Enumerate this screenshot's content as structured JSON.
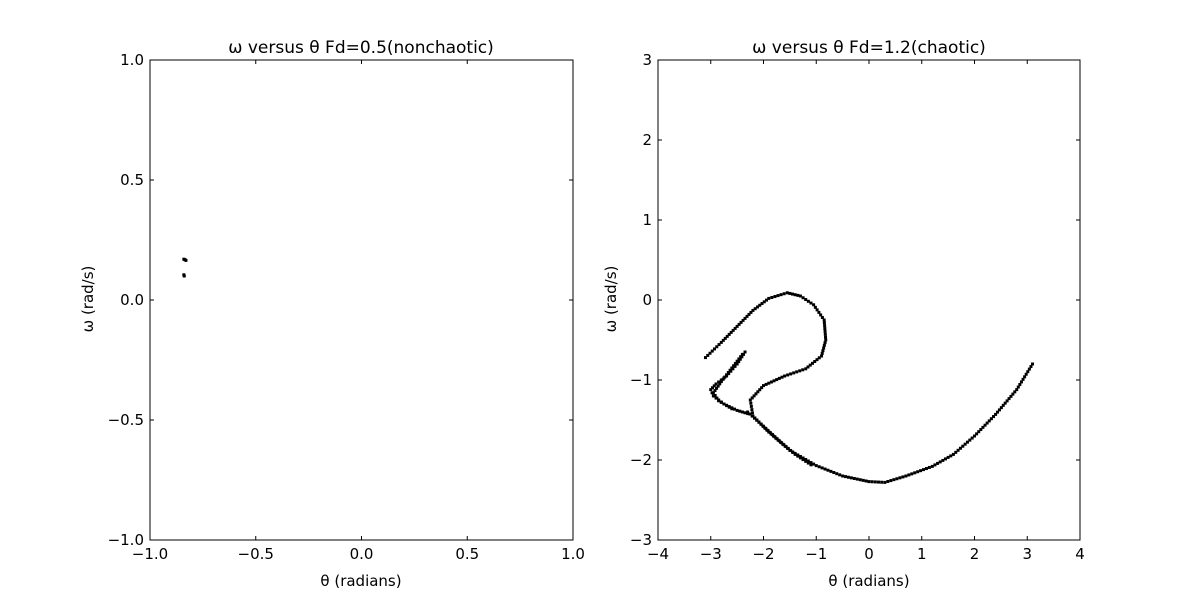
{
  "chart_data": [
    {
      "type": "scatter",
      "title": "ω versus θ  Fd=0.5(nonchaotic)",
      "xlabel": "θ (radians)",
      "ylabel": "ω (rad/s)",
      "xlim": [
        -1.0,
        1.0
      ],
      "ylim": [
        -1.0,
        1.0
      ],
      "xticks": [
        -1.0,
        -0.5,
        0.0,
        0.5,
        1.0
      ],
      "xtick_labels": [
        "−1.0",
        "−0.5",
        "0.0",
        "0.5",
        "1.0"
      ],
      "yticks": [
        -1.0,
        -0.5,
        0.0,
        0.5,
        1.0
      ],
      "ytick_labels": [
        "−1.0",
        "−0.5",
        "0.0",
        "0.5",
        "1.0"
      ],
      "grid": false,
      "marker_color": "#000000",
      "points": [
        [
          -0.84,
          0.17
        ],
        [
          -0.835,
          0.168
        ],
        [
          -0.83,
          0.165
        ],
        [
          -0.84,
          0.105
        ],
        [
          -0.838,
          0.1
        ]
      ]
    },
    {
      "type": "scatter",
      "title": "ω versus θ  Fd=1.2(chaotic)",
      "xlabel": "θ (radians)",
      "ylabel": "ω (rad/s)",
      "xlim": [
        -4,
        4
      ],
      "ylim": [
        -3,
        3
      ],
      "xticks": [
        -4,
        -3,
        -2,
        -1,
        0,
        1,
        2,
        3,
        4
      ],
      "xtick_labels": [
        "−4",
        "−3",
        "−2",
        "−1",
        "0",
        "1",
        "2",
        "3",
        "4"
      ],
      "yticks": [
        -3,
        -2,
        -1,
        0,
        1,
        2,
        3
      ],
      "ytick_labels": [
        "−3",
        "−2",
        "−1",
        "0",
        "1",
        "2",
        "3"
      ],
      "grid": false,
      "marker_color": "#000000",
      "segments": [
        [
          [
            -3.1,
            -0.72
          ],
          [
            -2.8,
            -0.53
          ],
          [
            -2.5,
            -0.33
          ],
          [
            -2.2,
            -0.13
          ],
          [
            -1.9,
            0.02
          ],
          [
            -1.55,
            0.09
          ],
          [
            -1.3,
            0.05
          ],
          [
            -1.05,
            -0.06
          ],
          [
            -0.85,
            -0.25
          ],
          [
            -0.82,
            -0.5
          ],
          [
            -0.9,
            -0.7
          ],
          [
            -1.2,
            -0.86
          ],
          [
            -1.6,
            -0.95
          ],
          [
            -2.0,
            -1.07
          ],
          [
            -2.25,
            -1.25
          ],
          [
            -2.2,
            -1.45
          ],
          [
            -1.9,
            -1.65
          ],
          [
            -1.5,
            -1.88
          ],
          [
            -1.0,
            -2.07
          ],
          [
            -0.5,
            -2.2
          ],
          [
            0.0,
            -2.27
          ],
          [
            0.3,
            -2.28
          ],
          [
            0.7,
            -2.2
          ],
          [
            1.2,
            -2.08
          ],
          [
            1.6,
            -1.93
          ],
          [
            2.0,
            -1.7
          ],
          [
            2.4,
            -1.43
          ],
          [
            2.8,
            -1.12
          ],
          [
            3.1,
            -0.8
          ]
        ],
        [
          [
            -2.35,
            -0.65
          ],
          [
            -2.5,
            -0.8
          ],
          [
            -2.7,
            -0.95
          ],
          [
            -2.9,
            -1.05
          ],
          [
            -3.0,
            -1.12
          ],
          [
            -2.95,
            -1.2
          ],
          [
            -2.75,
            -1.3
          ],
          [
            -2.5,
            -1.38
          ],
          [
            -2.3,
            -1.42
          ]
        ],
        [
          [
            -2.4,
            -0.68
          ],
          [
            -2.6,
            -0.85
          ],
          [
            -2.8,
            -1.02
          ],
          [
            -2.95,
            -1.16
          ],
          [
            -2.85,
            -1.26
          ],
          [
            -2.6,
            -1.36
          ]
        ],
        [
          [
            -2.3,
            -1.4
          ],
          [
            -2.0,
            -1.58
          ],
          [
            -1.7,
            -1.76
          ],
          [
            -1.4,
            -1.93
          ],
          [
            -1.1,
            -2.06
          ]
        ]
      ]
    }
  ]
}
